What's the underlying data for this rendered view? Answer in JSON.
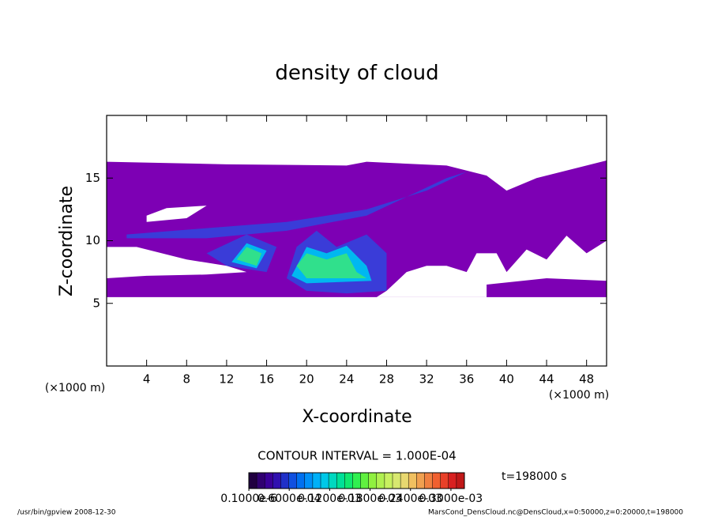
{
  "chart_data": {
    "type": "contour",
    "title": "density of cloud",
    "xlabel": "X-coordinate",
    "ylabel": "Z-coordinate",
    "x_unit": "(×1000 m)",
    "xlim": [
      0,
      50
    ],
    "xticks": [
      4,
      8,
      12,
      16,
      20,
      24,
      28,
      32,
      36,
      40,
      44,
      48
    ],
    "ylim": [
      0,
      20
    ],
    "yticks": [
      5,
      10,
      15
    ],
    "contour_interval": "CONTOUR INTERVAL = 1.000E-04",
    "time": "t=198000 s",
    "footer_left": "/usr/bin/gpview   2008-12-30",
    "footer_right": "MarsCond_DensCloud.nc@DensCloud,x=0:50000,z=0:20000,t=198000",
    "regions": [
      {
        "color": "#7d00b4",
        "x": [
          0,
          12,
          24,
          26,
          34,
          38,
          40,
          43,
          50,
          50,
          0
        ],
        "z": [
          16.3,
          16.1,
          16.0,
          16.3,
          16.0,
          15.2,
          14.0,
          15.0,
          16.4,
          5.5,
          5.5
        ]
      },
      {
        "color": "#ffffff",
        "x": [
          27,
          28,
          30,
          32,
          34,
          36,
          37,
          39,
          40,
          42,
          44,
          46,
          48,
          50,
          50
        ],
        "z": [
          5.5,
          6.0,
          7.5,
          8.0,
          8.0,
          7.5,
          9.0,
          9.0,
          7.5,
          9.3,
          8.5,
          10.4,
          9.0,
          10.0,
          5.5
        ]
      },
      {
        "color": "#7d00b4",
        "x": [
          38,
          50,
          50,
          44,
          38
        ],
        "z": [
          5.5,
          5.5,
          6.8,
          7.0,
          6.5
        ]
      },
      {
        "color": "#ffffff",
        "x": [
          0,
          0,
          3,
          8,
          12,
          14,
          10,
          4
        ],
        "z": [
          7.0,
          9.5,
          9.5,
          8.5,
          8.0,
          7.5,
          7.3,
          7.2
        ]
      },
      {
        "color": "#ffffff",
        "x": [
          4,
          8,
          10,
          6,
          4
        ],
        "z": [
          11.5,
          11.8,
          12.8,
          12.6,
          12.0
        ]
      },
      {
        "color": "#3a3cd8",
        "x": [
          2,
          10,
          18,
          26,
          32,
          36,
          34,
          26,
          18,
          10,
          2
        ],
        "z": [
          10.5,
          11.0,
          11.5,
          12.5,
          14.0,
          15.5,
          15.0,
          12.0,
          10.8,
          10.2,
          10.2
        ]
      },
      {
        "color": "#3a3cd8",
        "x": [
          10,
          14,
          17,
          16,
          12
        ],
        "z": [
          9.0,
          10.5,
          9.5,
          7.5,
          8.0
        ]
      },
      {
        "color": "#3a3cd8",
        "x": [
          18,
          19,
          21,
          23,
          26,
          28,
          28,
          24,
          20
        ],
        "z": [
          7.0,
          9.5,
          10.8,
          9.5,
          10.5,
          9.0,
          6.0,
          5.8,
          6.0
        ]
      },
      {
        "color": "#00b8f0",
        "x": [
          12.5,
          15,
          16,
          14
        ],
        "z": [
          8.3,
          7.8,
          9.2,
          9.8
        ]
      },
      {
        "color": "#00b8f0",
        "x": [
          18.5,
          20,
          22,
          24,
          26,
          26.5,
          20
        ],
        "z": [
          7.2,
          9.5,
          9.0,
          9.6,
          8.0,
          6.8,
          6.6
        ]
      },
      {
        "color": "#30e08c",
        "x": [
          13,
          15,
          15.5,
          14
        ],
        "z": [
          8.5,
          8.0,
          9.0,
          9.5
        ]
      },
      {
        "color": "#30e08c",
        "x": [
          19,
          20,
          22,
          24,
          25,
          26,
          20
        ],
        "z": [
          8.0,
          9.0,
          8.5,
          9.0,
          7.5,
          7.0,
          7.0
        ]
      }
    ],
    "colorbar": {
      "lim": [
        0,
        0.00032
      ],
      "colors": [
        "#200040",
        "#300070",
        "#3a0098",
        "#3010b0",
        "#2030c8",
        "#1050e0",
        "#0070f0",
        "#0090f8",
        "#00b0f8",
        "#00c8e8",
        "#00d8c0",
        "#00e098",
        "#10e870",
        "#30f050",
        "#60f040",
        "#90f040",
        "#b0f050",
        "#c8f060",
        "#d8e870",
        "#e8d870",
        "#f0c060",
        "#f0a050",
        "#f08040",
        "#f06030",
        "#e84028",
        "#d82020",
        "#c01818"
      ],
      "ticks": [
        {
          "value": 1e-07,
          "label": "0.1000e-6"
        },
        {
          "value": 6e-05,
          "label": "0.6000e-04"
        },
        {
          "value": 0.00012,
          "label": "0.1200e-03"
        },
        {
          "value": 0.00018,
          "label": "0.1800e-03"
        },
        {
          "value": 0.00024,
          "label": "0.2400e-03"
        },
        {
          "value": 0.0003,
          "label": "0.3000e-03"
        }
      ]
    }
  }
}
